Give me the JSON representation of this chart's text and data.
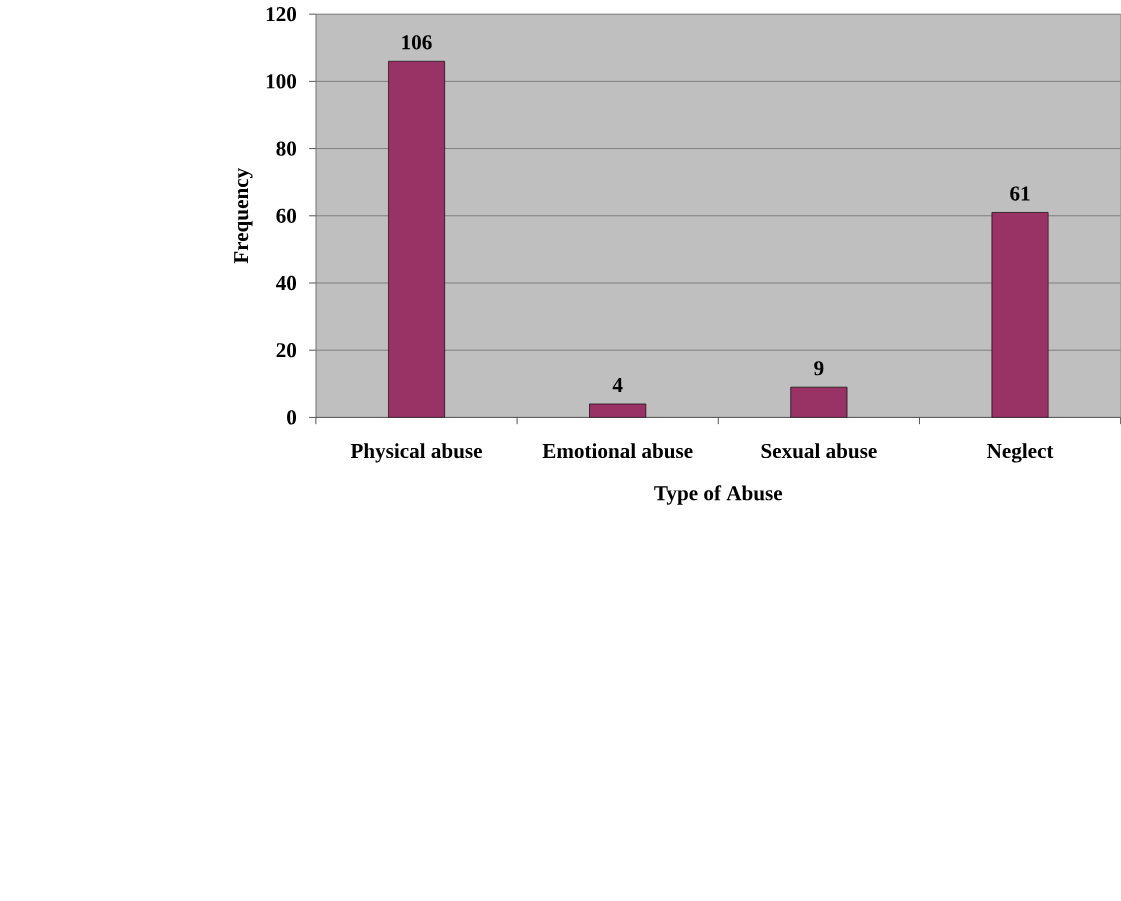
{
  "chart_data": {
    "type": "bar",
    "xlabel": "Type of Abuse",
    "ylabel": "Frequency",
    "categories": [
      "Physical abuse",
      "Emotional abuse",
      "Sexual abuse",
      "Neglect"
    ],
    "values": [
      106,
      4,
      9,
      61
    ],
    "color": "#993366",
    "ylim": [
      0,
      120
    ],
    "yticks": [
      0,
      20,
      40,
      60,
      80,
      100,
      120
    ],
    "grid": "y",
    "data_labels": true
  }
}
